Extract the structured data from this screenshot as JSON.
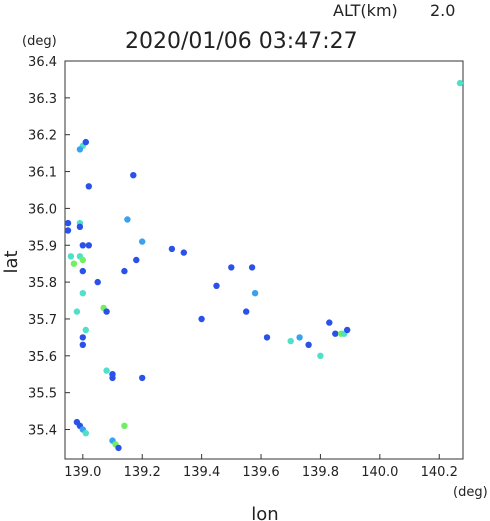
{
  "header": {
    "alt_label": "ALT(km)",
    "alt_value": "2.0",
    "timestamp": "2020/01/06 03:47:27"
  },
  "chart_data": {
    "type": "scatter",
    "title": "2020/01/06 03:47:27",
    "xlabel": "lon",
    "ylabel": "lat",
    "x_unit": "(deg)",
    "y_unit": "(deg)",
    "xlim": [
      138.94,
      140.28
    ],
    "ylim": [
      35.32,
      36.4
    ],
    "xticks": [
      139.0,
      139.2,
      139.4,
      139.6,
      139.8,
      140.0,
      140.2
    ],
    "xtick_labels": [
      "139.0",
      "139.2",
      "139.4",
      "139.6",
      "139.8",
      "140.0",
      "140.2"
    ],
    "yticks": [
      35.4,
      35.5,
      35.6,
      35.7,
      35.8,
      35.9,
      36.0,
      36.1,
      36.2,
      36.3,
      36.4
    ],
    "ytick_labels": [
      "35.4",
      "35.5",
      "35.6",
      "35.7",
      "35.8",
      "35.9",
      "36.0",
      "36.1",
      "36.2",
      "36.3",
      "36.4"
    ],
    "grid": false,
    "colors": {
      "strong": "#2a52e8",
      "medium": "#3aa0f0",
      "light": "#50e0c8",
      "highlight": "#70f060"
    },
    "points": [
      {
        "x": 139.0,
        "y": 36.17,
        "level": "light"
      },
      {
        "x": 138.99,
        "y": 36.16,
        "level": "medium"
      },
      {
        "x": 139.01,
        "y": 36.18,
        "level": "strong"
      },
      {
        "x": 139.02,
        "y": 36.06,
        "level": "strong"
      },
      {
        "x": 138.95,
        "y": 35.96,
        "level": "strong"
      },
      {
        "x": 138.95,
        "y": 35.94,
        "level": "strong"
      },
      {
        "x": 138.99,
        "y": 35.96,
        "level": "light"
      },
      {
        "x": 138.99,
        "y": 35.95,
        "level": "strong"
      },
      {
        "x": 139.0,
        "y": 35.9,
        "level": "strong"
      },
      {
        "x": 139.02,
        "y": 35.9,
        "level": "strong"
      },
      {
        "x": 138.96,
        "y": 35.87,
        "level": "light"
      },
      {
        "x": 138.97,
        "y": 35.85,
        "level": "highlight"
      },
      {
        "x": 138.99,
        "y": 35.87,
        "level": "light"
      },
      {
        "x": 139.0,
        "y": 35.86,
        "level": "highlight"
      },
      {
        "x": 139.0,
        "y": 35.83,
        "level": "strong"
      },
      {
        "x": 139.0,
        "y": 35.77,
        "level": "light"
      },
      {
        "x": 138.98,
        "y": 35.72,
        "level": "light"
      },
      {
        "x": 139.01,
        "y": 35.67,
        "level": "light"
      },
      {
        "x": 139.0,
        "y": 35.65,
        "level": "strong"
      },
      {
        "x": 139.0,
        "y": 35.63,
        "level": "strong"
      },
      {
        "x": 139.05,
        "y": 35.8,
        "level": "strong"
      },
      {
        "x": 139.07,
        "y": 35.73,
        "level": "highlight"
      },
      {
        "x": 139.08,
        "y": 35.72,
        "level": "strong"
      },
      {
        "x": 139.08,
        "y": 35.56,
        "level": "light"
      },
      {
        "x": 139.1,
        "y": 35.55,
        "level": "strong"
      },
      {
        "x": 139.1,
        "y": 35.54,
        "level": "strong"
      },
      {
        "x": 139.15,
        "y": 35.97,
        "level": "medium"
      },
      {
        "x": 139.2,
        "y": 35.91,
        "level": "medium"
      },
      {
        "x": 139.17,
        "y": 36.09,
        "level": "strong"
      },
      {
        "x": 139.14,
        "y": 35.83,
        "level": "strong"
      },
      {
        "x": 139.18,
        "y": 35.86,
        "level": "strong"
      },
      {
        "x": 139.2,
        "y": 35.54,
        "level": "strong"
      },
      {
        "x": 138.98,
        "y": 35.42,
        "level": "strong"
      },
      {
        "x": 138.99,
        "y": 35.41,
        "level": "strong"
      },
      {
        "x": 139.0,
        "y": 35.4,
        "level": "medium"
      },
      {
        "x": 139.01,
        "y": 35.39,
        "level": "light"
      },
      {
        "x": 139.1,
        "y": 35.37,
        "level": "medium"
      },
      {
        "x": 139.11,
        "y": 35.36,
        "level": "highlight"
      },
      {
        "x": 139.12,
        "y": 35.35,
        "level": "strong"
      },
      {
        "x": 139.14,
        "y": 35.41,
        "level": "highlight"
      },
      {
        "x": 139.3,
        "y": 35.89,
        "level": "strong"
      },
      {
        "x": 139.34,
        "y": 35.88,
        "level": "strong"
      },
      {
        "x": 139.4,
        "y": 35.7,
        "level": "strong"
      },
      {
        "x": 139.45,
        "y": 35.79,
        "level": "strong"
      },
      {
        "x": 139.5,
        "y": 35.84,
        "level": "strong"
      },
      {
        "x": 139.55,
        "y": 35.72,
        "level": "strong"
      },
      {
        "x": 139.57,
        "y": 35.84,
        "level": "strong"
      },
      {
        "x": 139.58,
        "y": 35.77,
        "level": "medium"
      },
      {
        "x": 139.62,
        "y": 35.65,
        "level": "strong"
      },
      {
        "x": 139.7,
        "y": 35.64,
        "level": "light"
      },
      {
        "x": 139.73,
        "y": 35.65,
        "level": "medium"
      },
      {
        "x": 139.76,
        "y": 35.63,
        "level": "strong"
      },
      {
        "x": 139.8,
        "y": 35.6,
        "level": "light"
      },
      {
        "x": 139.83,
        "y": 35.69,
        "level": "strong"
      },
      {
        "x": 139.85,
        "y": 35.66,
        "level": "strong"
      },
      {
        "x": 139.87,
        "y": 35.66,
        "level": "highlight"
      },
      {
        "x": 139.88,
        "y": 35.66,
        "level": "light"
      },
      {
        "x": 139.89,
        "y": 35.67,
        "level": "strong"
      },
      {
        "x": 140.27,
        "y": 36.34,
        "level": "light"
      }
    ]
  }
}
